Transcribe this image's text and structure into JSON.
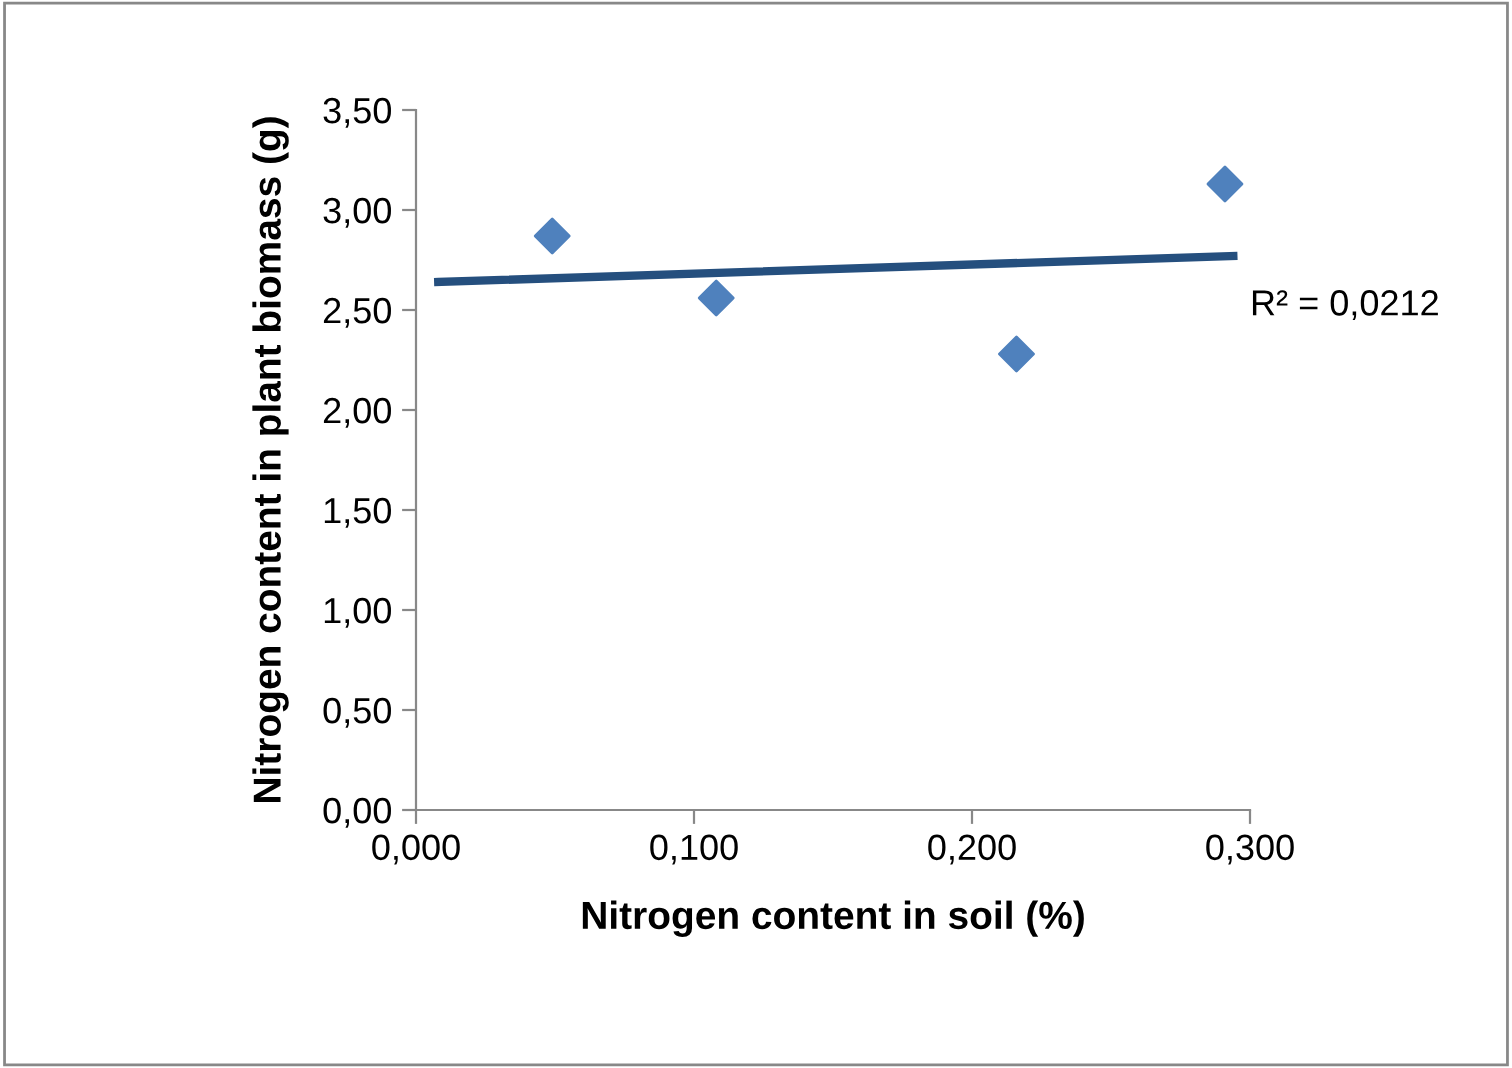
{
  "chart_data": {
    "type": "scatter",
    "xlabel": "Nitrogen content in soil (%)",
    "ylabel": "Nitrogen content in plant biomass (g)",
    "annotations": [
      "R² = 0,0212"
    ],
    "series": [
      {
        "color": "#4f81bd",
        "marker": "diamond",
        "x": [
          0.049,
          0.108,
          0.216,
          0.291
        ],
        "values": [
          2.87,
          2.56,
          2.28,
          3.13
        ]
      },
      {
        "type": "line",
        "color": "#254f7e",
        "marker": "none",
        "line_style": "solid",
        "x": [
          0.008,
          0.294
        ],
        "values": [
          2.64,
          2.77
        ]
      }
    ],
    "xlim": [
      0,
      0.3
    ],
    "xticks": [
      {
        "value": 0,
        "label": "0,000"
      },
      {
        "value": 0.1,
        "label": "0,100"
      },
      {
        "value": 0.2,
        "label": "0,200"
      },
      {
        "value": 0.3,
        "label": "0,300"
      }
    ],
    "ylim": [
      0,
      3.5
    ],
    "yticks": [
      {
        "value": 0,
        "label": "0,00"
      },
      {
        "value": 0.5,
        "label": "0,50"
      },
      {
        "value": 1,
        "label": "1,00"
      },
      {
        "value": 1.5,
        "label": "1,50"
      },
      {
        "value": 2,
        "label": "2,00"
      },
      {
        "value": 2.5,
        "label": "2,50"
      },
      {
        "value": 3,
        "label": "3,00"
      },
      {
        "value": 3.5,
        "label": "3,50"
      }
    ],
    "grid": false,
    "legend": false
  }
}
